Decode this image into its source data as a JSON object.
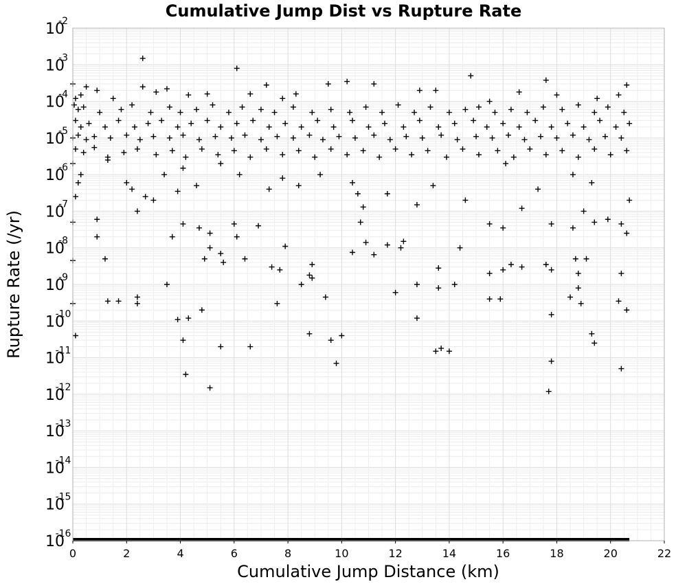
{
  "chart_data": {
    "type": "scatter",
    "title": "Cumulative Jump Dist vs Rupture Rate",
    "xlabel": "Cumulative Jump Distance (km)",
    "ylabel": "Rupture Rate (/yr)",
    "xlim": [
      0,
      22
    ],
    "ylim": [
      1e-16,
      0.01
    ],
    "yscale": "log",
    "grid": true,
    "marker": "plus",
    "marker_color": "#000000",
    "x_ticks": [
      "0",
      "2",
      "4",
      "6",
      "8",
      "10",
      "12",
      "14",
      "16",
      "18",
      "20",
      "22"
    ],
    "y_ticks": [
      {
        "base": "10",
        "exp": "-16"
      },
      {
        "base": "10",
        "exp": "-15"
      },
      {
        "base": "10",
        "exp": "-14"
      },
      {
        "base": "10",
        "exp": "-13"
      },
      {
        "base": "10",
        "exp": "-12"
      },
      {
        "base": "10",
        "exp": "-11"
      },
      {
        "base": "10",
        "exp": "-10"
      },
      {
        "base": "10",
        "exp": "-9"
      },
      {
        "base": "10",
        "exp": "-8"
      },
      {
        "base": "10",
        "exp": "-7"
      },
      {
        "base": "10",
        "exp": "-6"
      },
      {
        "base": "10",
        "exp": "-5"
      },
      {
        "base": "10",
        "exp": "-4"
      },
      {
        "base": "10",
        "exp": "-3"
      },
      {
        "base": "10",
        "exp": "-2"
      }
    ],
    "zero_rate_x_range": [
      0,
      20.7
    ],
    "points": [
      [
        2.6,
        0.0015
      ],
      [
        6.1,
        0.0008
      ],
      [
        14.8,
        0.0005
      ],
      [
        17.6,
        0.00038
      ],
      [
        10.2,
        0.00035
      ],
      [
        20.6,
        0.00028
      ],
      [
        0.0,
        0.0003
      ],
      [
        0.5,
        0.00025
      ],
      [
        2.6,
        0.00025
      ],
      [
        7.2,
        0.00028
      ],
      [
        9.5,
        0.0003
      ],
      [
        11.2,
        0.0003
      ],
      [
        0.1,
        0.00012
      ],
      [
        0.3,
        0.00015
      ],
      [
        0.9,
        0.0002
      ],
      [
        1.5,
        0.00012
      ],
      [
        3.1,
        0.00018
      ],
      [
        3.5,
        0.00022
      ],
      [
        4.3,
        0.00015
      ],
      [
        5.0,
        0.00016
      ],
      [
        6.6,
        0.00016
      ],
      [
        7.8,
        0.00012
      ],
      [
        8.3,
        0.00016
      ],
      [
        12.9,
        0.0002
      ],
      [
        13.5,
        0.0002
      ],
      [
        15.5,
        0.0001
      ],
      [
        16.6,
        0.00018
      ],
      [
        18.0,
        0.00015
      ],
      [
        19.5,
        0.00012
      ],
      [
        20.3,
        0.00015
      ],
      [
        0.05,
        8e-05
      ],
      [
        0.2,
        6e-05
      ],
      [
        0.4,
        7e-05
      ],
      [
        1.0,
        5e-05
      ],
      [
        1.8,
        6e-05
      ],
      [
        2.2,
        8e-05
      ],
      [
        2.9,
        5e-05
      ],
      [
        3.6,
        7e-05
      ],
      [
        4.0,
        5e-05
      ],
      [
        4.6,
        6e-05
      ],
      [
        5.2,
        8e-05
      ],
      [
        5.8,
        5e-05
      ],
      [
        6.3,
        7e-05
      ],
      [
        7.0,
        6e-05
      ],
      [
        7.5,
        5e-05
      ],
      [
        8.2,
        7e-05
      ],
      [
        8.9,
        5e-05
      ],
      [
        9.6,
        6e-05
      ],
      [
        10.3,
        5e-05
      ],
      [
        10.9,
        7e-05
      ],
      [
        11.5,
        5e-05
      ],
      [
        12.1,
        8e-05
      ],
      [
        12.7,
        5e-05
      ],
      [
        13.3,
        7e-05
      ],
      [
        14.0,
        5e-05
      ],
      [
        14.6,
        6e-05
      ],
      [
        15.1,
        7e-05
      ],
      [
        15.7,
        5e-05
      ],
      [
        16.3,
        6e-05
      ],
      [
        16.9,
        5e-05
      ],
      [
        17.5,
        7e-05
      ],
      [
        18.2,
        6e-05
      ],
      [
        18.8,
        8e-05
      ],
      [
        19.4,
        5e-05
      ],
      [
        19.9,
        7e-05
      ],
      [
        20.5,
        5e-05
      ],
      [
        0.1,
        3e-05
      ],
      [
        0.3,
        2e-05
      ],
      [
        0.6,
        2.5e-05
      ],
      [
        1.2,
        2e-05
      ],
      [
        1.7,
        3e-05
      ],
      [
        2.3,
        2e-05
      ],
      [
        2.8,
        2.5e-05
      ],
      [
        3.3,
        3e-05
      ],
      [
        3.9,
        2e-05
      ],
      [
        4.4,
        2.5e-05
      ],
      [
        5.0,
        3e-05
      ],
      [
        5.5,
        2e-05
      ],
      [
        6.1,
        2.5e-05
      ],
      [
        6.7,
        3e-05
      ],
      [
        7.3,
        2e-05
      ],
      [
        7.9,
        2.5e-05
      ],
      [
        8.5,
        2e-05
      ],
      [
        9.1,
        3e-05
      ],
      [
        9.7,
        2e-05
      ],
      [
        10.4,
        3e-05
      ],
      [
        11.0,
        2e-05
      ],
      [
        11.6,
        2.5e-05
      ],
      [
        12.3,
        2e-05
      ],
      [
        12.9,
        3e-05
      ],
      [
        13.6,
        2e-05
      ],
      [
        14.2,
        2.5e-05
      ],
      [
        14.9,
        3e-05
      ],
      [
        15.4,
        2e-05
      ],
      [
        16.0,
        2.5e-05
      ],
      [
        16.6,
        2e-05
      ],
      [
        17.2,
        3e-05
      ],
      [
        17.8,
        2e-05
      ],
      [
        18.4,
        2.5e-05
      ],
      [
        19.0,
        2e-05
      ],
      [
        19.6,
        3e-05
      ],
      [
        20.2,
        2e-05
      ],
      [
        20.7,
        2.5e-05
      ],
      [
        0.0,
        1e-05
      ],
      [
        0.2,
        1.2e-05
      ],
      [
        0.5,
        9e-06
      ],
      [
        0.8,
        1.1e-05
      ],
      [
        1.4,
        1e-05
      ],
      [
        2.0,
        1.2e-05
      ],
      [
        2.5,
        9e-06
      ],
      [
        3.0,
        1.1e-05
      ],
      [
        3.6,
        1e-05
      ],
      [
        4.1,
        1.2e-05
      ],
      [
        4.7,
        9e-06
      ],
      [
        5.3,
        1.1e-05
      ],
      [
        5.9,
        1e-05
      ],
      [
        6.4,
        1.2e-05
      ],
      [
        7.0,
        9e-06
      ],
      [
        7.6,
        1.1e-05
      ],
      [
        8.2,
        1e-05
      ],
      [
        8.8,
        1.2e-05
      ],
      [
        9.3,
        9e-06
      ],
      [
        9.9,
        1.1e-05
      ],
      [
        10.5,
        1e-05
      ],
      [
        11.2,
        1.2e-05
      ],
      [
        11.8,
        9e-06
      ],
      [
        12.4,
        1.1e-05
      ],
      [
        13.0,
        1e-05
      ],
      [
        13.7,
        1.2e-05
      ],
      [
        14.3,
        9e-06
      ],
      [
        15.0,
        1.1e-05
      ],
      [
        15.6,
        1e-05
      ],
      [
        16.2,
        1.2e-05
      ],
      [
        16.8,
        9e-06
      ],
      [
        17.4,
        1.1e-05
      ],
      [
        18.0,
        1e-05
      ],
      [
        18.6,
        1.2e-05
      ],
      [
        19.2,
        9e-06
      ],
      [
        19.8,
        1.1e-05
      ],
      [
        20.4,
        1e-05
      ],
      [
        0.1,
        5e-06
      ],
      [
        0.4,
        4e-06
      ],
      [
        0.8,
        5.5e-06
      ],
      [
        1.3,
        3e-06
      ],
      [
        1.9,
        4e-06
      ],
      [
        2.4,
        5e-06
      ],
      [
        3.1,
        3.5e-06
      ],
      [
        3.7,
        4.5e-06
      ],
      [
        4.2,
        3e-06
      ],
      [
        4.8,
        5e-06
      ],
      [
        5.4,
        3.5e-06
      ],
      [
        6.0,
        4.5e-06
      ],
      [
        6.6,
        3e-06
      ],
      [
        7.2,
        5e-06
      ],
      [
        7.8,
        3.5e-06
      ],
      [
        8.4,
        4.5e-06
      ],
      [
        9.0,
        3e-06
      ],
      [
        9.6,
        5e-06
      ],
      [
        10.2,
        3.5e-06
      ],
      [
        10.8,
        4.5e-06
      ],
      [
        11.4,
        3e-06
      ],
      [
        12.0,
        5e-06
      ],
      [
        12.6,
        3.5e-06
      ],
      [
        13.2,
        4.5e-06
      ],
      [
        13.9,
        3e-06
      ],
      [
        14.5,
        5e-06
      ],
      [
        15.1,
        3.5e-06
      ],
      [
        15.8,
        4.5e-06
      ],
      [
        16.4,
        3e-06
      ],
      [
        17.0,
        5e-06
      ],
      [
        17.6,
        3.5e-06
      ],
      [
        18.2,
        4.5e-06
      ],
      [
        18.8,
        3e-06
      ],
      [
        19.4,
        5e-06
      ],
      [
        20.0,
        3.5e-06
      ],
      [
        20.6,
        4.5e-06
      ],
      [
        0.0,
        2e-06
      ],
      [
        0.3,
        1e-06
      ],
      [
        0.2,
        6e-07
      ],
      [
        1.3,
        2.5e-06
      ],
      [
        2.0,
        6e-07
      ],
      [
        2.2,
        4e-07
      ],
      [
        3.4,
        1e-06
      ],
      [
        3.9,
        3.5e-07
      ],
      [
        4.1,
        1.5e-06
      ],
      [
        4.6,
        5e-07
      ],
      [
        5.5,
        2e-06
      ],
      [
        6.2,
        1e-06
      ],
      [
        7.3,
        4e-07
      ],
      [
        7.8,
        8e-07
      ],
      [
        8.4,
        5e-07
      ],
      [
        9.2,
        1e-06
      ],
      [
        10.4,
        6e-07
      ],
      [
        10.6,
        3e-07
      ],
      [
        10.8,
        1.3e-07
      ],
      [
        11.7,
        3e-07
      ],
      [
        12.8,
        1.5e-07
      ],
      [
        13.4,
        5e-07
      ],
      [
        14.6,
        2e-07
      ],
      [
        16.1,
        2e-06
      ],
      [
        16.7,
        1.2e-07
      ],
      [
        17.3,
        4e-07
      ],
      [
        18.6,
        1e-06
      ],
      [
        19.3,
        6e-07
      ],
      [
        20.7,
        2e-07
      ],
      [
        0.1,
        2.5e-07
      ],
      [
        2.4,
        1e-07
      ],
      [
        2.7,
        2.5e-07
      ],
      [
        3.0,
        2e-07
      ],
      [
        0.0,
        5e-08
      ],
      [
        0.9,
        6e-08
      ],
      [
        0.9,
        2e-08
      ],
      [
        1.2,
        5e-09
      ],
      [
        3.7,
        2e-08
      ],
      [
        4.1,
        4.5e-08
      ],
      [
        4.7,
        3.5e-08
      ],
      [
        5.1,
        2.5e-08
      ],
      [
        5.1,
        1e-08
      ],
      [
        5.5,
        7e-09
      ],
      [
        6.0,
        4.5e-08
      ],
      [
        6.1,
        2e-08
      ],
      [
        6.4,
        5e-09
      ],
      [
        6.9,
        4e-08
      ],
      [
        7.4,
        3e-09
      ],
      [
        7.9,
        1.1e-08
      ],
      [
        7.7,
        2.5e-09
      ],
      [
        10.7,
        5e-08
      ],
      [
        10.4,
        7.5e-09
      ],
      [
        10.9,
        1.4e-08
      ],
      [
        11.2,
        6.5e-09
      ],
      [
        11.7,
        1.2e-08
      ],
      [
        12.3,
        1.5e-08
      ],
      [
        12.2,
        1e-08
      ],
      [
        14.4,
        1e-08
      ],
      [
        15.5,
        4.5e-08
      ],
      [
        16.0,
        3.5e-08
      ],
      [
        16.7,
        3e-09
      ],
      [
        16.3,
        3.5e-09
      ],
      [
        17.6,
        3.5e-09
      ],
      [
        17.8,
        4.5e-08
      ],
      [
        18.6,
        3.5e-08
      ],
      [
        18.7,
        5e-09
      ],
      [
        19.1,
        5e-09
      ],
      [
        19.0,
        1e-07
      ],
      [
        19.4,
        5e-08
      ],
      [
        19.9,
        6e-08
      ],
      [
        20.4,
        4.5e-08
      ],
      [
        20.6,
        2.5e-08
      ],
      [
        0.0,
        4.5e-09
      ],
      [
        1.3,
        3.5e-10
      ],
      [
        1.7,
        3.5e-10
      ],
      [
        2.4,
        4.5e-10
      ],
      [
        2.4,
        3e-10
      ],
      [
        3.5,
        1e-09
      ],
      [
        4.9,
        5e-09
      ],
      [
        5.6,
        4e-09
      ],
      [
        7.6,
        3e-10
      ],
      [
        8.5,
        1e-09
      ],
      [
        8.8,
        1.8e-09
      ],
      [
        8.9,
        1.5e-09
      ],
      [
        8.9,
        3.5e-09
      ],
      [
        9.4,
        4.5e-10
      ],
      [
        12.0,
        6e-10
      ],
      [
        12.8,
        1e-09
      ],
      [
        13.6,
        2.8e-09
      ],
      [
        13.6,
        8e-10
      ],
      [
        14.2,
        1e-09
      ],
      [
        15.5,
        2e-09
      ],
      [
        15.5,
        4e-10
      ],
      [
        15.9,
        4e-10
      ],
      [
        16.0,
        2.5e-09
      ],
      [
        17.8,
        2.5e-09
      ],
      [
        18.8,
        8e-10
      ],
      [
        18.9,
        3e-10
      ],
      [
        18.8,
        2e-09
      ],
      [
        18.5,
        4.5e-10
      ],
      [
        20.3,
        3.5e-10
      ],
      [
        20.4,
        2e-09
      ],
      [
        20.6,
        2e-10
      ],
      [
        0.0,
        3e-10
      ],
      [
        0.1,
        4e-11
      ],
      [
        3.9,
        1.1e-10
      ],
      [
        4.1,
        3e-11
      ],
      [
        4.3,
        1.2e-10
      ],
      [
        4.8,
        2e-10
      ],
      [
        12.8,
        1.2e-10
      ],
      [
        8.8,
        4.5e-11
      ],
      [
        9.6,
        3e-11
      ],
      [
        10.0,
        4e-11
      ],
      [
        5.5,
        2e-11
      ],
      [
        6.6,
        2e-11
      ],
      [
        9.8,
        7e-12
      ],
      [
        13.5,
        1.5e-11
      ],
      [
        13.7,
        1.8e-11
      ],
      [
        14.0,
        1.5e-11
      ],
      [
        17.8,
        1.5e-10
      ],
      [
        17.8,
        8e-12
      ],
      [
        19.3,
        4.5e-11
      ],
      [
        19.4,
        2.5e-11
      ],
      [
        4.2,
        3.5e-12
      ],
      [
        5.1,
        1.5e-12
      ],
      [
        17.7,
        1.2e-12
      ],
      [
        20.4,
        5e-12
      ]
    ]
  }
}
